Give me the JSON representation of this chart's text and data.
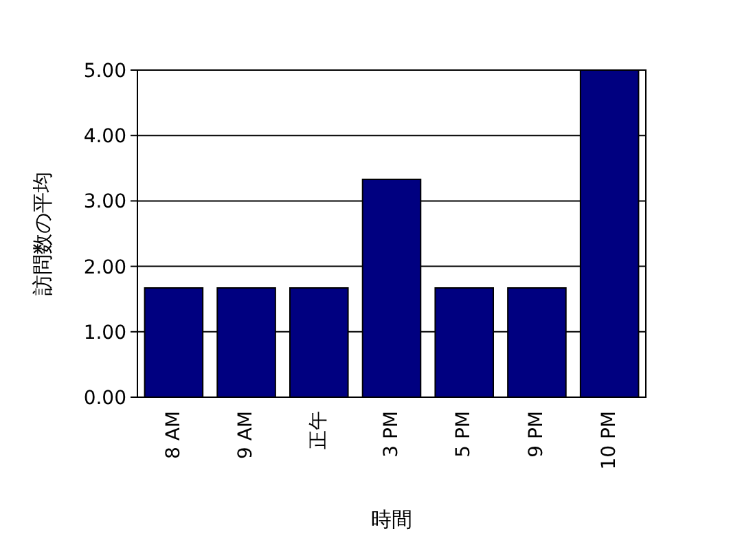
{
  "chart_data": {
    "type": "bar",
    "xlabel": "時間",
    "ylabel": "訪問数の平均",
    "categories": [
      "8 AM",
      "9 AM",
      "正午",
      "3 PM",
      "5 PM",
      "9 PM",
      "10 PM"
    ],
    "values": [
      1.67,
      1.67,
      1.67,
      3.33,
      1.67,
      1.67,
      5.0
    ],
    "color": "#000080",
    "ylim": [
      0,
      5
    ],
    "yticks": [
      {
        "value": 0,
        "label": "0.00"
      },
      {
        "value": 1,
        "label": "1.00"
      },
      {
        "value": 2,
        "label": "2.00"
      },
      {
        "value": 3,
        "label": "3.00"
      },
      {
        "value": 4,
        "label": "4.00"
      },
      {
        "value": 5,
        "label": "5.00"
      }
    ],
    "grid": "y"
  }
}
